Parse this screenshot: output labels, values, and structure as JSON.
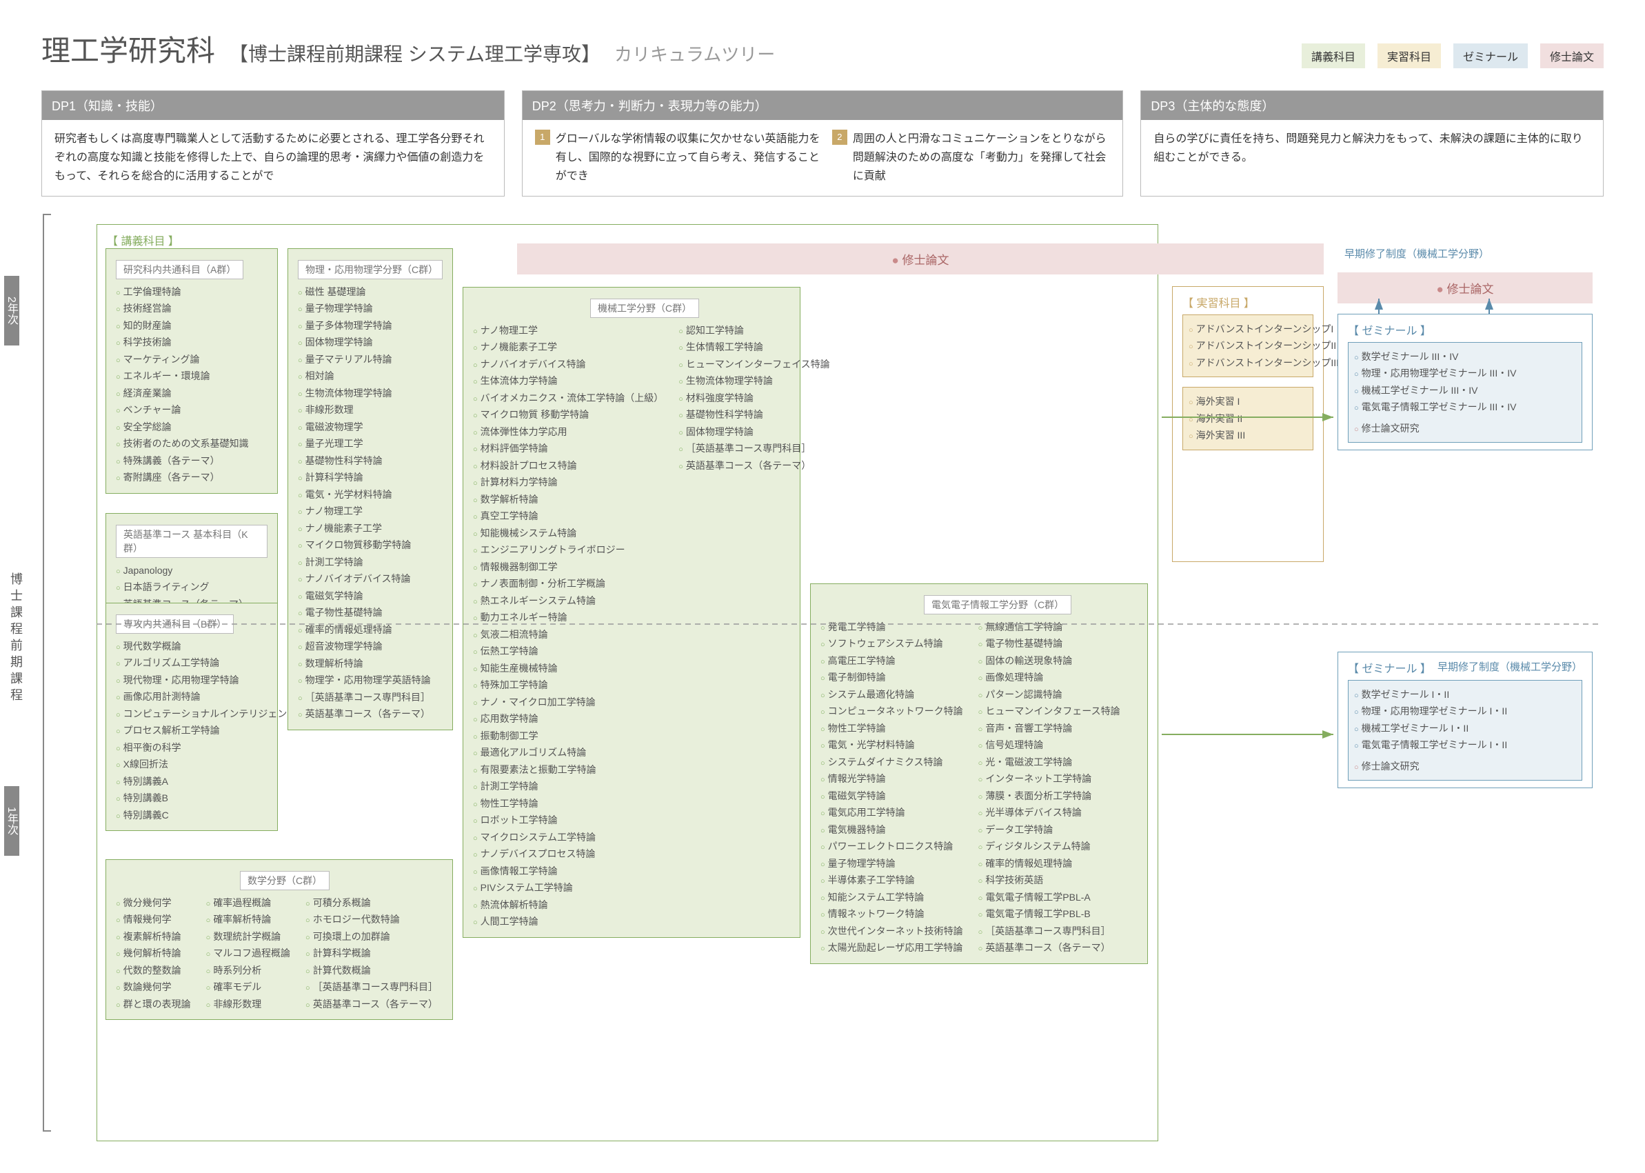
{
  "title": {
    "main": "理工学研究科",
    "sub": "【博士課程前期課程 システム理工学専攻】",
    "tree": "カリキュラムツリー"
  },
  "legend": {
    "lecture": "講義科目",
    "practical": "実習科目",
    "seminar": "ゼミナール",
    "thesis": "修士論文"
  },
  "dp": {
    "dp1": {
      "header": "DP1（知識・技能）",
      "body": "研究者もしくは高度専門職業人として活動するために必要とされる、理工学各分野それぞれの高度な知識と技能を修得した上で、自らの論理的思考・演繹力や価値の創造力をもって、それらを総合的に活用することがで"
    },
    "dp2": {
      "header": "DP2（思考力・判断力・表現力等の能力）",
      "body1": "グローバルな学術情報の収集に欠かせない英語能力を有し、国際的な視野に立って自ら考え、発信することができ",
      "body2": "周囲の人と円滑なコミュニケーションをとりながら問題解決のための高度な「考動力」を発揮して社会に貢献"
    },
    "dp3": {
      "header": "DP3（主体的な態度）",
      "body": "自らの学びに責任を持ち、問題発見力と解決力をもって、未解決の課題に主体的に取り組むことができる。"
    }
  },
  "rail": {
    "year2": "2年次",
    "year1": "1年次",
    "program": "博士課程前期課程"
  },
  "sections": {
    "lectureHeader": "【 講義科目 】",
    "practicalHeader": "【 実習科目 】",
    "seminarHeader": "【 ゼミナール 】"
  },
  "thesis": {
    "label": "修士論文",
    "early": "早期修了制度（機械工学分野）",
    "research": "修士論文研究"
  },
  "groups": {
    "A": {
      "title": "研究科内共通科目（A群）",
      "items": [
        "工学倫理特論",
        "技術経営論",
        "知的財産論",
        "科学技術論",
        "マーケティング論",
        "エネルギー・環境論",
        "経済産業論",
        "ベンチャー論",
        "安全学総論",
        "技術者のための文系基礎知識",
        "特殊講義（各テーマ）",
        "寄附講座（各テーマ）"
      ]
    },
    "K": {
      "title": "英語基準コース 基本科目（K群）",
      "items": [
        "Japanology",
        "日本語ライティング",
        "英語基準コース（各テーマ）"
      ]
    },
    "B": {
      "title": "専攻内共通科目（B群）",
      "items": [
        "現代数学概論",
        "アルゴリズム工学特論",
        "現代物理・応用物理学特論",
        "画像応用計測特論",
        "コンピュテーショナルインテリジェンス特論",
        "プロセス解析工学特論",
        "相平衡の科学",
        "X線回折法",
        "特別講義A",
        "特別講義B",
        "特別講義C"
      ]
    },
    "mathC": {
      "title": "数学分野（C群）",
      "cols": [
        [
          "微分幾何学",
          "情報幾何学",
          "複素解析特論",
          "幾何解析特論",
          "代数的整数論",
          "数論幾何学",
          "群と環の表現論"
        ],
        [
          "確率過程概論",
          "確率解析特論",
          "数理統計学概論",
          "マルコフ過程概論",
          "時系列分析",
          "確率モデル",
          "非線形数理"
        ],
        [
          "可積分系概論",
          "ホモロジー代数特論",
          "可換環上の加群論",
          "計算科学概論",
          "計算代数概論",
          "［英語基準コース専門科目］",
          "英語基準コース（各テーマ）"
        ]
      ]
    },
    "physC": {
      "title": "物理・応用物理学分野（C群）",
      "items": [
        "磁性 基礎理論",
        "量子物理学特論",
        "量子多体物理学特論",
        "固体物理学特論",
        "量子マテリアル特論",
        "相対論",
        "生物流体物理学特論",
        "非線形数理",
        "電磁波物理学",
        "量子光理工学",
        "基礎物性科学特論",
        "計算科学特論",
        "電気・光学材料特論",
        "ナノ物理工学",
        "ナノ機能素子工学",
        "マイクロ物質移動学特論",
        "計測工学特論",
        "ナノバイオデバイス特論",
        "電磁気学特論",
        "電子物性基礎特論",
        "確率的情報処理特論",
        "超音波物理学特論",
        "数理解析特論",
        "物理学・応用物理学英語特論",
        "［英語基準コース専門科目］",
        "英語基準コース（各テーマ）"
      ]
    },
    "mechC": {
      "title": "機械工学分野（C群）",
      "left": [
        "ナノ物理工学",
        "ナノ機能素子工学",
        "ナノバイオデバイス特論",
        "生体流体力学特論",
        "バイオメカニクス・流体工学特論（上級）",
        "マイクロ物質 移動学特論",
        "流体弾性体力学応用",
        "材料評価学特論",
        "材料設計プロセス特論",
        "計算材料力学特論",
        "数学解析特論",
        "真空工学特論",
        "知能機械システム特論",
        "エンジニアリングトライボロジー",
        "情報機器制御工学",
        "ナノ表面制御・分析工学概論",
        "熱エネルギーシステム特論",
        "動力エネルギー特論",
        "気液二相流特論",
        "伝熱工学特論",
        "知能生産機械特論",
        "特殊加工学特論",
        "ナノ・マイクロ加工学特論",
        "応用数学特論",
        "振動制御工学",
        "最適化アルゴリズム特論",
        "有限要素法と振動工学特論",
        "計測工学特論",
        "物性工学特論",
        "ロボット工学特論",
        "マイクロシステム工学特論",
        "ナノデバイスプロセス特論",
        "画像情報工学特論",
        "PIVシステム工学特論",
        "熱流体解析特論",
        "人間工学特論"
      ],
      "right": [
        "認知工学特論",
        "生体情報工学特論",
        "ヒューマンインターフェイス特論",
        "生物流体物理学特論",
        "材料強度学特論",
        "基礎物性科学特論",
        "固体物理学特論",
        "［英語基準コース専門科目］",
        "英語基準コース（各テーマ）"
      ]
    },
    "elecC": {
      "title": "電気電子情報工学分野（C群）",
      "left": [
        "発電工学特論",
        "ソフトウェアシステム特論",
        "高電圧工学特論",
        "電子制御特論",
        "システム最適化特論",
        "コンピュータネットワーク特論",
        "物性工学特論",
        "電気・光学材料特論",
        "システムダイナミクス特論",
        "情報光学特論",
        "電磁気学特論",
        "電気応用工学特論",
        "電気機器特論",
        "パワーエレクトロニクス特論",
        "量子物理学特論",
        "半導体素子工学特論",
        "知能システム工学特論",
        "情報ネットワーク特論",
        "次世代インターネット技術特論",
        "太陽光励起レーザ応用工学特論"
      ],
      "right": [
        "無線通信工学特論",
        "電子物性基礎特論",
        "固体の輸送現象特論",
        "画像処理特論",
        "パターン認識特論",
        "ヒューマンインタフェース特論",
        "音声・音響工学特論",
        "信号処理特論",
        "光・電磁波工学特論",
        "インターネット工学特論",
        "薄膜・表面分析工学特論",
        "光半導体デバイス特論",
        "データ工学特論",
        "ディジタルシステム特論",
        "確率的情報処理特論",
        "科学技術英語",
        "電気電子情報工学PBL-A",
        "電気電子情報工学PBL-B",
        "［英語基準コース専門科目］",
        "英語基準コース（各テーマ）"
      ]
    },
    "practical": {
      "itemsA": [
        "アドバンストインターンシップI",
        "アドバンストインターンシップII",
        "アドバンストインターンシップIII"
      ],
      "itemsB": [
        "海外実習 I",
        "海外実習 II",
        "海外実習 III"
      ]
    },
    "seminar34": [
      "数学ゼミナール III・IV",
      "物理・応用物理学ゼミナール III・IV",
      "機械工学ゼミナール III・IV",
      "電気電子情報工学ゼミナール III・IV"
    ],
    "seminar12": [
      "数学ゼミナール I・II",
      "物理・応用物理学ゼミナール I・II",
      "機械工学ゼミナール I・II",
      "電気電子情報工学ゼミナール I・II"
    ]
  },
  "colors": {
    "green": "#85ad5f",
    "greenBg": "#e8efdb",
    "yellow": "#c8a868",
    "yellowBg": "#f6edd3",
    "blue": "#6f9fb9",
    "blueBg": "#dde8ef",
    "pink": "#c98a8a",
    "pinkBg": "#f1dfdf",
    "gray": "#999999"
  }
}
